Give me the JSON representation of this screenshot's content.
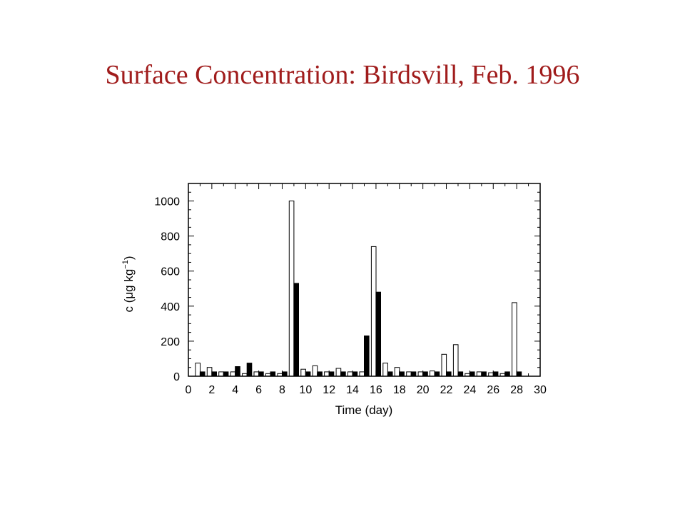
{
  "slide": {
    "title": "Surface Concentration: Birdsvill, Feb. 1996",
    "title_color": "#a01c1c"
  },
  "chart_data": {
    "type": "bar",
    "xlabel": "Time (day)",
    "ylabel_prefix": "c (",
    "ylabel_mu": "μ",
    "ylabel_units": "g kg",
    "ylabel_exp": "−1",
    "ylabel_suffix": ")",
    "xlim": [
      0,
      30
    ],
    "ylim": [
      0,
      1100
    ],
    "x_ticks": [
      "0",
      "2",
      "4",
      "6",
      "8",
      "10",
      "12",
      "14",
      "16",
      "18",
      "20",
      "22",
      "24",
      "26",
      "28",
      "30"
    ],
    "y_ticks": [
      "0",
      "200",
      "400",
      "600",
      "800",
      "1000"
    ],
    "series": [
      {
        "style": "open",
        "fill": "#ffffff",
        "x": [
          1,
          2,
          3,
          4,
          5,
          6,
          7,
          8,
          9,
          10,
          11,
          12,
          13,
          14,
          15,
          16,
          17,
          18,
          19,
          20,
          21,
          22,
          23,
          24,
          25,
          26,
          27,
          28
        ],
        "values": [
          75,
          50,
          25,
          25,
          15,
          25,
          15,
          15,
          1000,
          40,
          60,
          25,
          45,
          25,
          25,
          740,
          75,
          50,
          25,
          25,
          30,
          125,
          180,
          15,
          25,
          20,
          15,
          420
        ]
      },
      {
        "style": "filled",
        "fill": "#000000",
        "x": [
          1,
          2,
          3,
          4,
          5,
          6,
          7,
          8,
          9,
          10,
          11,
          12,
          13,
          14,
          15,
          16,
          17,
          18,
          19,
          20,
          21,
          22,
          23,
          24,
          25,
          26,
          27,
          28
        ],
        "values": [
          25,
          25,
          25,
          55,
          75,
          25,
          25,
          25,
          530,
          25,
          25,
          25,
          25,
          25,
          230,
          480,
          25,
          25,
          25,
          25,
          25,
          25,
          25,
          25,
          25,
          25,
          25,
          25
        ]
      }
    ]
  }
}
